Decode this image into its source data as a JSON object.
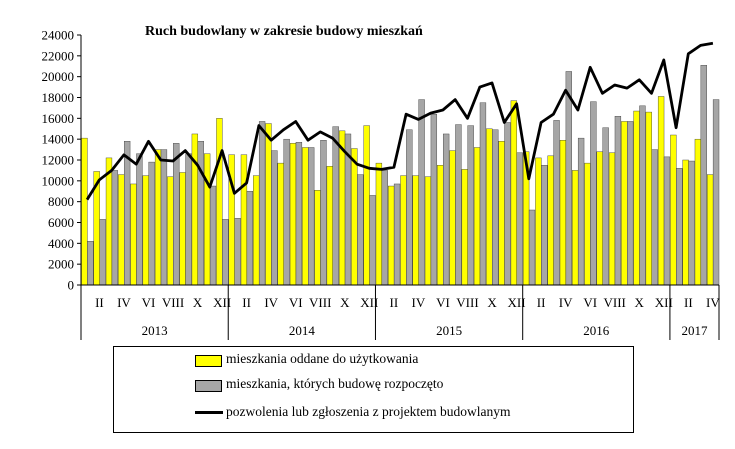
{
  "chart_data": {
    "type": "bar",
    "title": "Ruch budowlany w zakresie budowy mieszkań",
    "xlabel": "",
    "ylabel": "",
    "ylim": [
      0,
      24000
    ],
    "yticks": [
      "0",
      "2000",
      "4000",
      "6000",
      "8000",
      "10000",
      "12000",
      "14000",
      "16000",
      "18000",
      "20000",
      "22000",
      "24000"
    ],
    "grid": false,
    "legend_position": "bottom",
    "colors": {
      "completed": "#ffff00",
      "started": "#a6a6a6",
      "permits": "#000000",
      "bar_edge": "#333333"
    },
    "years": [
      {
        "label": "2013",
        "months": 12
      },
      {
        "label": "2014",
        "months": 12
      },
      {
        "label": "2015",
        "months": 12
      },
      {
        "label": "2016",
        "months": 12
      },
      {
        "label": "2017",
        "months": 4
      }
    ],
    "month_tick_labels": [
      "",
      "II",
      "",
      "IV",
      "",
      "VI",
      "",
      "VIII",
      "",
      "X",
      "",
      "XII"
    ],
    "series": [
      {
        "name": "mieszkania oddane do użytkowania",
        "kind": "bar",
        "values": [
          14100,
          10900,
          12200,
          10600,
          9700,
          10500,
          13000,
          10400,
          10800,
          14500,
          12600,
          16000,
          12500,
          12500,
          10500,
          15500,
          11700,
          13600,
          13200,
          9100,
          11400,
          14800,
          13100,
          15300,
          11700,
          9500,
          10500,
          10500,
          10400,
          11500,
          12900,
          11100,
          13200,
          15000,
          13800,
          17700,
          12800,
          12200,
          12400,
          13900,
          11000,
          11700,
          12800,
          12700,
          15700,
          16700,
          16600,
          18100,
          14400,
          12000,
          14000,
          10600
        ]
      },
      {
        "name": "mieszkania, których budowę rozpoczęto",
        "kind": "bar",
        "values": [
          4200,
          6300,
          11000,
          13800,
          12600,
          11800,
          13000,
          13600,
          12600,
          13800,
          9500,
          6300,
          6400,
          9000,
          15700,
          12900,
          14000,
          13700,
          13200,
          13900,
          15200,
          14500,
          10600,
          8600,
          11000,
          9700,
          14900,
          17800,
          16400,
          14500,
          15400,
          15300,
          17500,
          14900,
          15600,
          12700,
          7200,
          11500,
          15800,
          20500,
          14100,
          17600,
          15100,
          16200,
          15700,
          17200,
          13000,
          12300,
          11200,
          11900,
          21100,
          17800
        ]
      },
      {
        "name": "pozwolenia lub zgłoszenia z projektem budowlanym",
        "kind": "line",
        "values": [
          8200,
          10100,
          11000,
          12500,
          11600,
          13800,
          12000,
          11900,
          12900,
          11500,
          9400,
          12900,
          8800,
          9800,
          15300,
          13900,
          14900,
          15700,
          13900,
          14700,
          14100,
          12800,
          11600,
          11200,
          11100,
          11300,
          16400,
          15900,
          16500,
          16800,
          17800,
          16000,
          19000,
          19400,
          15600,
          17400,
          10200,
          15600,
          16400,
          18700,
          16800,
          20900,
          18400,
          19200,
          18900,
          19700,
          18400,
          21600,
          15100,
          22200,
          23000,
          23200
        ]
      }
    ]
  }
}
